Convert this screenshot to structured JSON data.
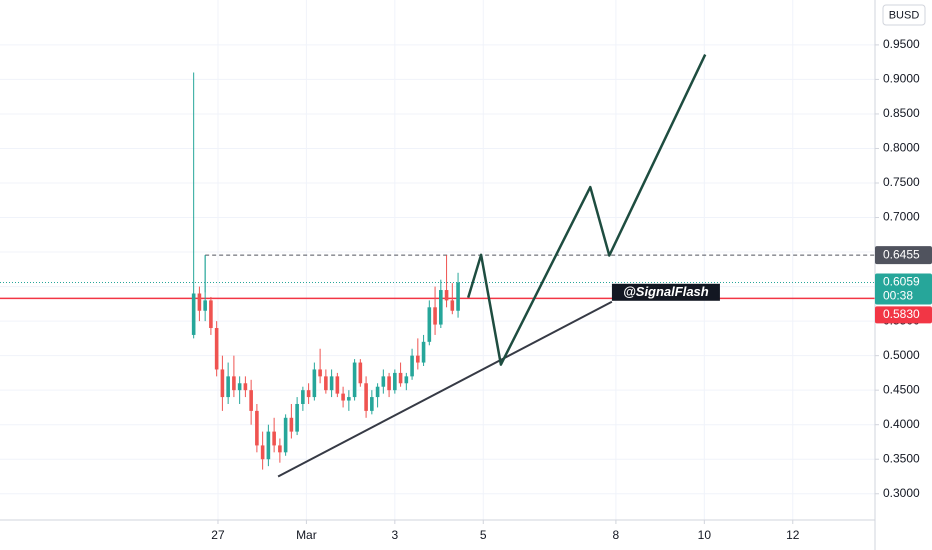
{
  "chart_data": {
    "type": "candlestick",
    "currency": "BUSD",
    "x": [
      26.45,
      26.58,
      26.71,
      26.84,
      26.97,
      27.1,
      27.23,
      27.36,
      27.49,
      27.62,
      27.75,
      27.88,
      28.01,
      28.14,
      28.27,
      28.4,
      28.53,
      28.66,
      28.79,
      28.92,
      29.05,
      29.18,
      29.31,
      29.44,
      29.57,
      29.7,
      29.83,
      29.96,
      30.09,
      30.22,
      30.35,
      30.48,
      30.61,
      30.74,
      30.87,
      31.0,
      31.13,
      31.26,
      31.39,
      31.52,
      31.65,
      31.78,
      31.91,
      32.04,
      32.17,
      32.3,
      32.43
    ],
    "open": [
      0.53,
      0.59,
      0.565,
      0.58,
      0.54,
      0.48,
      0.44,
      0.47,
      0.45,
      0.46,
      0.45,
      0.42,
      0.37,
      0.35,
      0.39,
      0.37,
      0.36,
      0.41,
      0.39,
      0.43,
      0.45,
      0.44,
      0.48,
      0.47,
      0.45,
      0.47,
      0.445,
      0.435,
      0.44,
      0.49,
      0.46,
      0.42,
      0.44,
      0.455,
      0.47,
      0.45,
      0.475,
      0.46,
      0.47,
      0.5,
      0.49,
      0.52,
      0.57,
      0.545,
      0.595,
      0.58,
      0.565
    ],
    "high": [
      0.91,
      0.6,
      0.6455,
      0.585,
      0.55,
      0.5,
      0.49,
      0.5,
      0.47,
      0.47,
      0.465,
      0.43,
      0.39,
      0.4,
      0.41,
      0.38,
      0.415,
      0.43,
      0.44,
      0.455,
      0.46,
      0.49,
      0.51,
      0.48,
      0.48,
      0.475,
      0.455,
      0.45,
      0.495,
      0.495,
      0.47,
      0.45,
      0.46,
      0.48,
      0.475,
      0.48,
      0.49,
      0.475,
      0.51,
      0.525,
      0.53,
      0.58,
      0.6,
      0.61,
      0.6455,
      0.605,
      0.62
    ],
    "low": [
      0.525,
      0.55,
      0.55,
      0.53,
      0.47,
      0.42,
      0.43,
      0.44,
      0.43,
      0.44,
      0.4,
      0.36,
      0.335,
      0.34,
      0.36,
      0.345,
      0.355,
      0.38,
      0.385,
      0.42,
      0.43,
      0.435,
      0.46,
      0.445,
      0.44,
      0.44,
      0.425,
      0.42,
      0.435,
      0.455,
      0.41,
      0.415,
      0.425,
      0.445,
      0.44,
      0.445,
      0.455,
      0.45,
      0.465,
      0.48,
      0.485,
      0.515,
      0.53,
      0.54,
      0.57,
      0.56,
      0.555
    ],
    "close": [
      0.59,
      0.565,
      0.58,
      0.54,
      0.48,
      0.44,
      0.47,
      0.45,
      0.46,
      0.45,
      0.42,
      0.37,
      0.35,
      0.39,
      0.37,
      0.36,
      0.41,
      0.39,
      0.43,
      0.45,
      0.44,
      0.48,
      0.47,
      0.45,
      0.47,
      0.445,
      0.435,
      0.44,
      0.49,
      0.46,
      0.42,
      0.44,
      0.455,
      0.47,
      0.45,
      0.475,
      0.46,
      0.47,
      0.5,
      0.49,
      0.52,
      0.57,
      0.545,
      0.595,
      0.58,
      0.565,
      0.6059
    ],
    "up_color": "#26a69a",
    "down_color": "#ef5350",
    "xlim": [
      22.07,
      41.86
    ],
    "ylim": [
      0.262,
      1.015
    ],
    "xticks": [
      {
        "value": 27,
        "label": "27"
      },
      {
        "value": 29,
        "label": "Mar"
      },
      {
        "value": 31,
        "label": "3"
      },
      {
        "value": 33,
        "label": "5"
      },
      {
        "value": 36,
        "label": "8"
      },
      {
        "value": 38,
        "label": "10"
      },
      {
        "value": 40,
        "label": "12"
      }
    ],
    "yticks": [
      {
        "value": 0.3,
        "label": "0.3000"
      },
      {
        "value": 0.35,
        "label": "0.3500"
      },
      {
        "value": 0.4,
        "label": "0.4000"
      },
      {
        "value": 0.45,
        "label": "0.4500"
      },
      {
        "value": 0.5,
        "label": "0.5000"
      },
      {
        "value": 0.55,
        "label": "0.5500"
      },
      {
        "value": 0.6,
        "label": "0.6000"
      },
      {
        "value": 0.65,
        "label": "0.6500"
      },
      {
        "value": 0.7,
        "label": "0.7000"
      },
      {
        "value": 0.75,
        "label": "0.7500"
      },
      {
        "value": 0.8,
        "label": "0.8000"
      },
      {
        "value": 0.85,
        "label": "0.8500"
      },
      {
        "value": 0.9,
        "label": "0.9000"
      },
      {
        "value": 0.95,
        "label": "0.9500"
      }
    ],
    "grid": true,
    "resistance": {
      "value": 0.6455,
      "label": "0.6455",
      "start_x": 26.71,
      "color": "#50535e"
    },
    "last_price": {
      "value": 0.6059,
      "label": "0.6059",
      "countdown": "00:38",
      "color": "#26a69a"
    },
    "support": {
      "value": 0.583,
      "label": "0.5830",
      "color": "#f23645"
    },
    "annotation": "@SignalFlash",
    "trendline": {
      "x": [
        28.36,
        35.91
      ],
      "y": [
        0.325,
        0.578
      ],
      "color": "#363a45"
    },
    "projection": {
      "x": [
        32.66,
        32.95,
        33.4,
        35.42,
        35.85,
        38.02
      ],
      "y": [
        0.584,
        0.646,
        0.487,
        0.744,
        0.645,
        0.936
      ],
      "color": "#1e4d40"
    }
  }
}
